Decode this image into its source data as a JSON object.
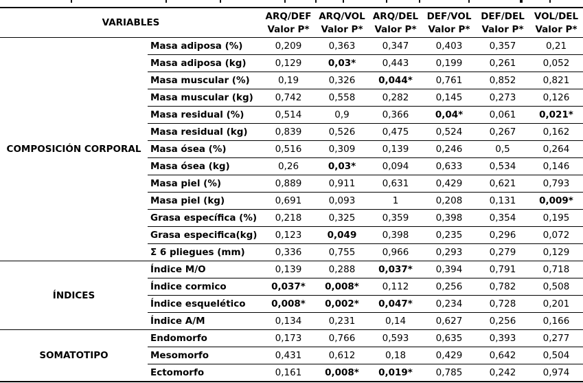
{
  "table": {
    "variables_header": "VARIABLES",
    "value_subheader": "Valor P*",
    "comparisons": [
      "ARQ/DEF",
      "ARQ/VOL",
      "ARQ/DEL",
      "DEF/VOL",
      "DEF/DEL",
      "VOL/DEL"
    ],
    "groups": [
      {
        "category": "COMPOSICIÓN CORPORAL",
        "rows": [
          {
            "label": "Masa adiposa (%)",
            "values": [
              "0,209",
              "0,363",
              "0,347",
              "0,403",
              "0,357",
              "0,21"
            ],
            "bold": []
          },
          {
            "label": "Masa adiposa (kg)",
            "values": [
              "0,129",
              "0,03*",
              "0,443",
              "0,199",
              "0,261",
              "0,052"
            ],
            "bold": [
              1
            ]
          },
          {
            "label": "Masa muscular (%)",
            "values": [
              "0,19",
              "0,326",
              "0,044*",
              "0,761",
              "0,852",
              "0,821"
            ],
            "bold": [
              2
            ]
          },
          {
            "label": "Masa muscular (kg)",
            "values": [
              "0,742",
              "0,558",
              "0,282",
              "0,145",
              "0,273",
              "0,126"
            ],
            "bold": []
          },
          {
            "label": "Masa residual (%)",
            "values": [
              "0,514",
              "0,9",
              "0,366",
              "0,04*",
              "0,061",
              "0,021*"
            ],
            "bold": [
              3,
              5
            ]
          },
          {
            "label": "Masa residual (kg)",
            "values": [
              "0,839",
              "0,526",
              "0,475",
              "0,524",
              "0,267",
              "0,162"
            ],
            "bold": []
          },
          {
            "label": "Masa ósea (%)",
            "values": [
              "0,516",
              "0,309",
              "0,139",
              "0,246",
              "0,5",
              "0,264"
            ],
            "bold": []
          },
          {
            "label": "Masa ósea (kg)",
            "values": [
              "0,26",
              "0,03*",
              "0,094",
              "0,633",
              "0,534",
              "0,146"
            ],
            "bold": [
              1
            ]
          },
          {
            "label": "Masa piel (%)",
            "values": [
              "0,889",
              "0,911",
              "0,631",
              "0,429",
              "0,621",
              "0,793"
            ],
            "bold": []
          },
          {
            "label": "Masa piel (kg)",
            "values": [
              "0,691",
              "0,093",
              "1",
              "0,208",
              "0,131",
              "0,009*"
            ],
            "bold": [
              5
            ]
          },
          {
            "label": "Grasa específica (%)",
            "values": [
              "0,218",
              "0,325",
              "0,359",
              "0,398",
              "0,354",
              "0,195"
            ],
            "bold": []
          },
          {
            "label": "Grasa especifica(kg)",
            "values": [
              "0,123",
              "0,049",
              "0,398",
              "0,235",
              "0,296",
              "0,072"
            ],
            "bold": [
              1
            ]
          },
          {
            "label": "Σ 6 pliegues (mm)",
            "values": [
              "0,336",
              "0,755",
              "0,966",
              "0,293",
              "0,279",
              "0,129"
            ],
            "bold": []
          }
        ]
      },
      {
        "category": "ÍNDICES",
        "rows": [
          {
            "label": "Índice M/O",
            "values": [
              "0,139",
              "0,288",
              "0,037*",
              "0,394",
              "0,791",
              "0,718"
            ],
            "bold": [
              2
            ]
          },
          {
            "label": "Índice cormico",
            "values": [
              "0,037*",
              "0,008*",
              "0,112",
              "0,256",
              "0,782",
              "0,508"
            ],
            "bold": [
              0,
              1
            ]
          },
          {
            "label": "Índice esquelético",
            "values": [
              "0,008*",
              "0,002*",
              "0,047*",
              "0,234",
              "0,728",
              "0,201"
            ],
            "bold": [
              0,
              1,
              2
            ]
          },
          {
            "label": "Índice A/M",
            "values": [
              "0,134",
              "0,231",
              "0,14",
              "0,627",
              "0,256",
              "0,166"
            ],
            "bold": []
          }
        ]
      },
      {
        "category": "SOMATOTIPO",
        "rows": [
          {
            "label": "Endomorfo",
            "values": [
              "0,173",
              "0,766",
              "0,593",
              "0,635",
              "0,393",
              "0,277"
            ],
            "bold": []
          },
          {
            "label": "Mesomorfo",
            "values": [
              "0,431",
              "0,612",
              "0,18",
              "0,429",
              "0,642",
              "0,504"
            ],
            "bold": []
          },
          {
            "label": "Ectomorfo",
            "values": [
              "0,161",
              "0,008*",
              "0,019*",
              "0,785",
              "0,242",
              "0,974"
            ],
            "bold": [
              1,
              2
            ]
          }
        ]
      }
    ]
  }
}
